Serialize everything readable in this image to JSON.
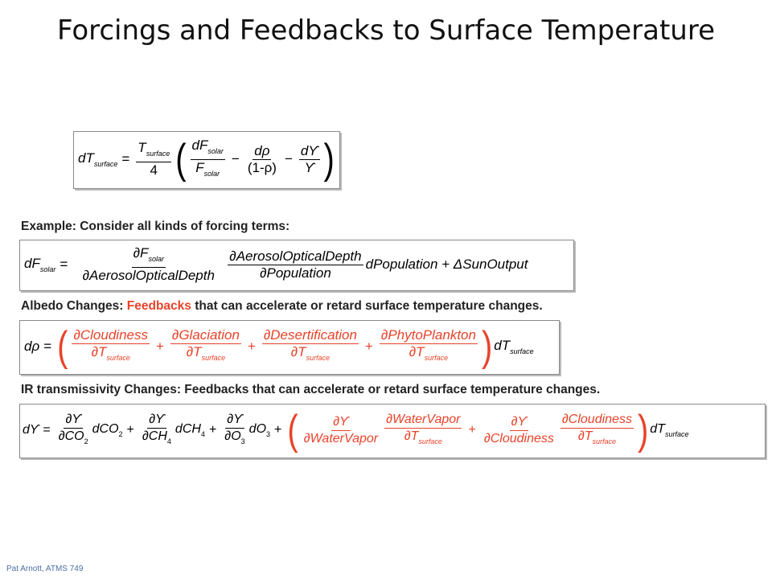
{
  "slide": {
    "title": "Forcings and Feedbacks to Surface Temperature",
    "footer": "Pat Arnott, ATMS 749"
  },
  "text_lines": {
    "example": "Example: Consider all kinds of forcing terms:",
    "albedo_prefix": "Albedo Changes: ",
    "albedo_feedbacks": "Feedbacks",
    "albedo_suffix": " that can accelerate or retard surface temperature changes.",
    "ir": "IR transmissivity Changes: Feedbacks that can accelerate or retard surface temperature changes."
  },
  "equations": {
    "main": {
      "lhs": "dT",
      "lhs_sub": "surface",
      "coef_num": "T",
      "coef_num_sub": "surface",
      "coef_den": "4",
      "t1_num": "dF",
      "t1_num_sub": "solar",
      "t1_den": "F",
      "t1_den_sub": "solar",
      "t2_num": "dρ",
      "t2_den": "(1-ρ)",
      "t3_num": "dϒ",
      "t3_den": "ϒ"
    },
    "solar": {
      "lhs": "dF",
      "lhs_sub": "solar",
      "f1_num": "∂F",
      "f1_num_sub": "solar",
      "f1_den": "∂AerosolOpticalDepth",
      "f2_num": "∂AerosolOpticalDepth",
      "f2_den": "∂Population",
      "tail": "dPopulation + ΔSunOutput"
    },
    "albedo": {
      "lhs": "dρ",
      "f1_num": "∂Cloudiness",
      "f2_num": "∂Glaciation",
      "f3_num": "∂Desertification",
      "f4_num": "∂PhytoPlankton",
      "den": "∂T",
      "den_sub": "surface",
      "tail": "dT",
      "tail_sub": "surface"
    },
    "ir": {
      "lhs": "dϒ",
      "dY": "∂ϒ",
      "co2_den": "∂CO",
      "co2_sub": "2",
      "co2_d": "dCO",
      "ch4_den": "∂CH",
      "ch4_sub": "4",
      "ch4_d": "dCH",
      "o3_den": "∂O",
      "o3_sub": "3",
      "o3_d": "dO",
      "wv_den": "∂WaterVapor",
      "wv_num2": "∂WaterVapor",
      "cl_den": "∂Cloudiness",
      "cl_num2": "∂Cloudiness",
      "T_den": "∂T",
      "T_sub": "surface",
      "tail": "dT",
      "tail_sub": "surface"
    }
  },
  "colors": {
    "feedback_red": "#e8432a",
    "footer_blue": "#4a6fa5"
  }
}
